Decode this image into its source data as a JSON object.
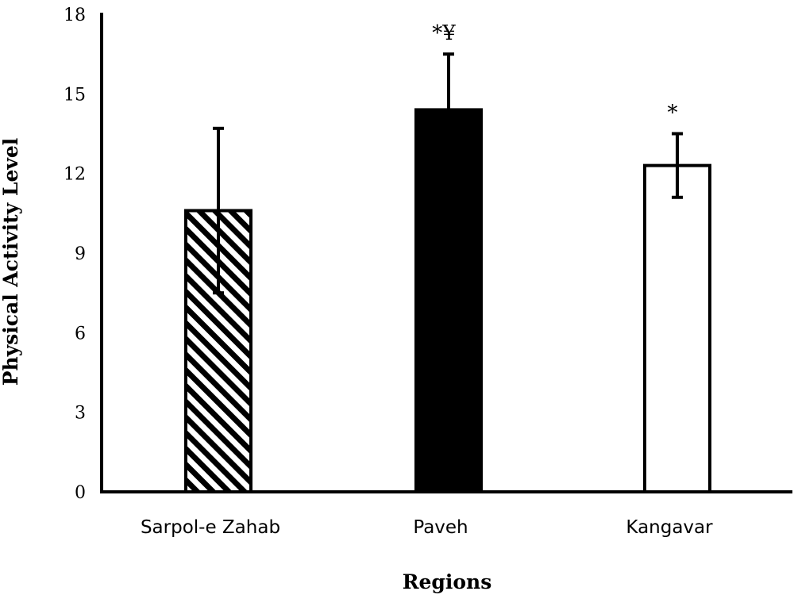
{
  "chart_data": {
    "type": "bar",
    "categories": [
      "Sarpol-e Zahab",
      "Paveh",
      "Kangavar"
    ],
    "values": [
      10.6,
      14.4,
      12.3
    ],
    "error": [
      3.1,
      2.1,
      1.2
    ],
    "annotations": [
      "",
      "*¥",
      "*"
    ],
    "bar_fills": [
      "hatched",
      "solid-black",
      "white"
    ],
    "title": "",
    "xlabel": "Regions",
    "ylabel": "Physical Activity Level",
    "ylim": [
      0,
      18
    ],
    "yticks": [
      "0",
      "3",
      "6",
      "9",
      "12",
      "15",
      "18"
    ],
    "grid": false,
    "colors": {
      "bar_dark": "#000000",
      "bar_light": "#ffffff",
      "axis": "#000000"
    }
  }
}
